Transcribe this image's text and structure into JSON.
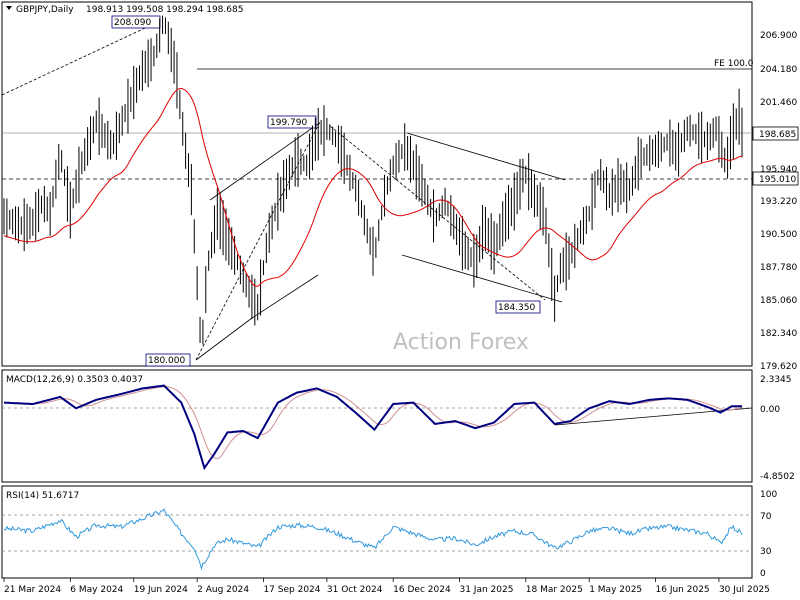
{
  "chart_data": {
    "type": "candlestick",
    "symbol_header": "GBPJPY,Daily",
    "ohlc_header": "198.913 199.508 198.294 198.685",
    "watermark": "Action Forex",
    "main_panel": {
      "ylim": [
        179.62,
        208.8
      ],
      "y_ticks": [
        "206.900",
        "204.180",
        "201.460",
        "198.685",
        "195.940",
        "193.220",
        "190.500",
        "187.780",
        "185.060",
        "182.340",
        "179.620"
      ],
      "current_price_label": "198.685",
      "level_label": "195.010",
      "fe_label": "FE 100.0",
      "annotations": [
        "208.090",
        "199.790",
        "184.350",
        "180.000"
      ],
      "close_series": [
        {
          "date": "2024-03-21",
          "close": 191.8
        },
        {
          "date": "2024-04-01",
          "close": 191.0
        },
        {
          "date": "2024-04-10",
          "close": 191.3
        },
        {
          "date": "2024-04-17",
          "close": 193.0
        },
        {
          "date": "2024-04-22",
          "close": 192.0
        },
        {
          "date": "2024-04-29",
          "close": 197.0
        },
        {
          "date": "2024-05-06",
          "close": 192.3
        },
        {
          "date": "2024-05-14",
          "close": 196.2
        },
        {
          "date": "2024-05-24",
          "close": 199.6
        },
        {
          "date": "2024-06-04",
          "close": 197.5
        },
        {
          "date": "2024-06-13",
          "close": 200.3
        },
        {
          "date": "2024-06-19",
          "close": 202.0
        },
        {
          "date": "2024-06-25",
          "close": 203.8
        },
        {
          "date": "2024-07-03",
          "close": 205.0
        },
        {
          "date": "2024-07-10",
          "close": 208.0
        },
        {
          "date": "2024-07-18",
          "close": 204.0
        },
        {
          "date": "2024-07-24",
          "close": 198.0
        },
        {
          "date": "2024-07-29",
          "close": 194.0
        },
        {
          "date": "2024-08-05",
          "close": 180.5
        },
        {
          "date": "2024-08-09",
          "close": 187.5
        },
        {
          "date": "2024-08-16",
          "close": 192.0
        },
        {
          "date": "2024-08-23",
          "close": 190.0
        },
        {
          "date": "2024-08-30",
          "close": 188.0
        },
        {
          "date": "2024-09-06",
          "close": 185.8
        },
        {
          "date": "2024-09-13",
          "close": 184.3
        },
        {
          "date": "2024-09-20",
          "close": 190.0
        },
        {
          "date": "2024-09-27",
          "close": 193.0
        },
        {
          "date": "2024-10-04",
          "close": 195.2
        },
        {
          "date": "2024-10-10",
          "close": 196.5
        },
        {
          "date": "2024-10-17",
          "close": 196.0
        },
        {
          "date": "2024-10-24",
          "close": 198.5
        },
        {
          "date": "2024-10-31",
          "close": 199.0
        },
        {
          "date": "2024-11-07",
          "close": 198.0
        },
        {
          "date": "2024-11-14",
          "close": 196.0
        },
        {
          "date": "2024-11-21",
          "close": 193.8
        },
        {
          "date": "2024-11-27",
          "close": 191.0
        },
        {
          "date": "2024-12-03",
          "close": 188.5
        },
        {
          "date": "2024-12-10",
          "close": 193.5
        },
        {
          "date": "2024-12-16",
          "close": 196.0
        },
        {
          "date": "2024-12-24",
          "close": 197.5
        },
        {
          "date": "2024-12-30",
          "close": 196.0
        },
        {
          "date": "2025-01-07",
          "close": 193.8
        },
        {
          "date": "2025-01-14",
          "close": 191.5
        },
        {
          "date": "2025-01-21",
          "close": 193.0
        },
        {
          "date": "2025-01-28",
          "close": 191.0
        },
        {
          "date": "2025-02-04",
          "close": 189.0
        },
        {
          "date": "2025-02-11",
          "close": 188.0
        },
        {
          "date": "2025-02-17",
          "close": 191.0
        },
        {
          "date": "2025-02-24",
          "close": 189.2
        },
        {
          "date": "2025-03-03",
          "close": 191.5
        },
        {
          "date": "2025-03-10",
          "close": 193.0
        },
        {
          "date": "2025-03-17",
          "close": 195.5
        },
        {
          "date": "2025-03-24",
          "close": 193.5
        },
        {
          "date": "2025-03-31",
          "close": 192.0
        },
        {
          "date": "2025-04-07",
          "close": 185.0
        },
        {
          "date": "2025-04-11",
          "close": 187.5
        },
        {
          "date": "2025-04-18",
          "close": 188.5
        },
        {
          "date": "2025-04-25",
          "close": 190.5
        },
        {
          "date": "2025-05-01",
          "close": 192.0
        },
        {
          "date": "2025-05-08",
          "close": 195.5
        },
        {
          "date": "2025-05-15",
          "close": 193.5
        },
        {
          "date": "2025-05-22",
          "close": 194.5
        },
        {
          "date": "2025-05-29",
          "close": 194.0
        },
        {
          "date": "2025-06-05",
          "close": 196.5
        },
        {
          "date": "2025-06-12",
          "close": 197.0
        },
        {
          "date": "2025-06-18",
          "close": 197.3
        },
        {
          "date": "2025-06-25",
          "close": 198.0
        },
        {
          "date": "2025-07-01",
          "close": 197.0
        },
        {
          "date": "2025-07-08",
          "close": 199.0
        },
        {
          "date": "2025-07-15",
          "close": 198.5
        },
        {
          "date": "2025-07-22",
          "close": 198.0
        },
        {
          "date": "2025-07-28",
          "close": 199.0
        },
        {
          "date": "2025-08-04",
          "close": 196.0
        },
        {
          "date": "2025-08-08",
          "close": 198.5
        },
        {
          "date": "2025-08-13",
          "close": 200.0
        },
        {
          "date": "2025-08-15",
          "close": 198.7
        }
      ]
    },
    "macd_panel": {
      "label": "MACD(12,26,9) 0.3503 0.4037",
      "ylim": [
        -4.8502,
        2.3345
      ],
      "y_ticks": [
        "2.3345",
        "0.00",
        "-4.8502"
      ],
      "zero_label": "0.00",
      "macd_series": [
        {
          "date": "2024-03-21",
          "v": 0.6
        },
        {
          "date": "2024-04-10",
          "v": 0.5
        },
        {
          "date": "2024-04-29",
          "v": 1.0
        },
        {
          "date": "2024-05-10",
          "v": 0.2
        },
        {
          "date": "2024-05-24",
          "v": 0.8
        },
        {
          "date": "2024-06-10",
          "v": 1.2
        },
        {
          "date": "2024-06-25",
          "v": 1.6
        },
        {
          "date": "2024-07-10",
          "v": 1.8
        },
        {
          "date": "2024-07-22",
          "v": 0.6
        },
        {
          "date": "2024-07-31",
          "v": -1.6
        },
        {
          "date": "2024-08-07",
          "v": -4.0
        },
        {
          "date": "2024-08-14",
          "v": -3.0
        },
        {
          "date": "2024-08-23",
          "v": -1.5
        },
        {
          "date": "2024-09-03",
          "v": -1.4
        },
        {
          "date": "2024-09-13",
          "v": -1.9
        },
        {
          "date": "2024-09-27",
          "v": 0.6
        },
        {
          "date": "2024-10-10",
          "v": 1.3
        },
        {
          "date": "2024-10-24",
          "v": 1.6
        },
        {
          "date": "2024-11-07",
          "v": 1.0
        },
        {
          "date": "2024-11-21",
          "v": -0.2
        },
        {
          "date": "2024-12-03",
          "v": -1.3
        },
        {
          "date": "2024-12-16",
          "v": 0.5
        },
        {
          "date": "2024-12-30",
          "v": 0.6
        },
        {
          "date": "2025-01-14",
          "v": -0.9
        },
        {
          "date": "2025-01-28",
          "v": -0.7
        },
        {
          "date": "2025-02-11",
          "v": -1.2
        },
        {
          "date": "2025-02-24",
          "v": -0.8
        },
        {
          "date": "2025-03-10",
          "v": 0.5
        },
        {
          "date": "2025-03-24",
          "v": 0.6
        },
        {
          "date": "2025-04-07",
          "v": -0.9
        },
        {
          "date": "2025-04-18",
          "v": -0.7
        },
        {
          "date": "2025-05-01",
          "v": 0.2
        },
        {
          "date": "2025-05-15",
          "v": 0.7
        },
        {
          "date": "2025-05-29",
          "v": 0.5
        },
        {
          "date": "2025-06-12",
          "v": 0.8
        },
        {
          "date": "2025-06-25",
          "v": 0.9
        },
        {
          "date": "2025-07-08",
          "v": 0.8
        },
        {
          "date": "2025-07-22",
          "v": 0.3
        },
        {
          "date": "2025-07-31",
          "v": -0.1
        },
        {
          "date": "2025-08-08",
          "v": 0.35
        },
        {
          "date": "2025-08-15",
          "v": 0.35
        }
      ]
    },
    "rsi_panel": {
      "label": "RSI(14) 51.6717",
      "ylim": [
        0,
        100
      ],
      "y_ticks": [
        "100",
        "70",
        "50",
        "30",
        "0"
      ],
      "levels": [
        70,
        30
      ],
      "rsi_series": [
        {
          "date": "2024-03-21",
          "v": 58
        },
        {
          "date": "2024-04-10",
          "v": 55
        },
        {
          "date": "2024-04-29",
          "v": 68
        },
        {
          "date": "2024-05-10",
          "v": 48
        },
        {
          "date": "2024-05-24",
          "v": 62
        },
        {
          "date": "2024-06-10",
          "v": 60
        },
        {
          "date": "2024-06-25",
          "v": 70
        },
        {
          "date": "2024-07-10",
          "v": 80
        },
        {
          "date": "2024-07-22",
          "v": 52
        },
        {
          "date": "2024-07-31",
          "v": 35
        },
        {
          "date": "2024-08-05",
          "v": 12
        },
        {
          "date": "2024-08-14",
          "v": 38
        },
        {
          "date": "2024-08-23",
          "v": 45
        },
        {
          "date": "2024-09-03",
          "v": 40
        },
        {
          "date": "2024-09-13",
          "v": 35
        },
        {
          "date": "2024-09-27",
          "v": 60
        },
        {
          "date": "2024-10-10",
          "v": 62
        },
        {
          "date": "2024-10-24",
          "v": 60
        },
        {
          "date": "2024-11-07",
          "v": 52
        },
        {
          "date": "2024-11-21",
          "v": 42
        },
        {
          "date": "2024-12-03",
          "v": 34
        },
        {
          "date": "2024-12-16",
          "v": 60
        },
        {
          "date": "2024-12-30",
          "v": 52
        },
        {
          "date": "2025-01-14",
          "v": 44
        },
        {
          "date": "2025-01-28",
          "v": 46
        },
        {
          "date": "2025-02-11",
          "v": 38
        },
        {
          "date": "2025-02-24",
          "v": 48
        },
        {
          "date": "2025-03-10",
          "v": 55
        },
        {
          "date": "2025-03-24",
          "v": 50
        },
        {
          "date": "2025-04-07",
          "v": 34
        },
        {
          "date": "2025-04-18",
          "v": 42
        },
        {
          "date": "2025-05-01",
          "v": 55
        },
        {
          "date": "2025-05-15",
          "v": 58
        },
        {
          "date": "2025-05-29",
          "v": 52
        },
        {
          "date": "2025-06-12",
          "v": 58
        },
        {
          "date": "2025-06-25",
          "v": 60
        },
        {
          "date": "2025-07-08",
          "v": 56
        },
        {
          "date": "2025-07-22",
          "v": 52
        },
        {
          "date": "2025-07-31",
          "v": 40
        },
        {
          "date": "2025-08-08",
          "v": 60
        },
        {
          "date": "2025-08-15",
          "v": 52
        }
      ]
    },
    "x_ticks": [
      {
        "date": "2024-03-21",
        "label": "21 Mar 2024"
      },
      {
        "date": "2024-05-06",
        "label": "6 May 2024"
      },
      {
        "date": "2024-06-19",
        "label": "19 Jun 2024"
      },
      {
        "date": "2024-08-02",
        "label": "2 Aug 2024"
      },
      {
        "date": "2024-09-17",
        "label": "17 Sep 2024"
      },
      {
        "date": "2024-10-31",
        "label": "31 Oct 2024"
      },
      {
        "date": "2024-12-16",
        "label": "16 Dec 2024"
      },
      {
        "date": "2025-01-31",
        "label": "31 Jan 2025"
      },
      {
        "date": "2025-03-18",
        "label": "18 Mar 2025"
      },
      {
        "date": "2025-05-01",
        "label": "1 May 2025"
      },
      {
        "date": "2025-06-16",
        "label": "16 Jun 2025"
      },
      {
        "date": "2025-07-30",
        "label": "30 Jul 2025"
      }
    ],
    "colors": {
      "candles": "#000000",
      "ma": "#e00000",
      "macd": "#000080",
      "signal": "#d09090",
      "rsi": "#3399dd",
      "grid": "#888888",
      "annotation_box": "#000080"
    }
  }
}
